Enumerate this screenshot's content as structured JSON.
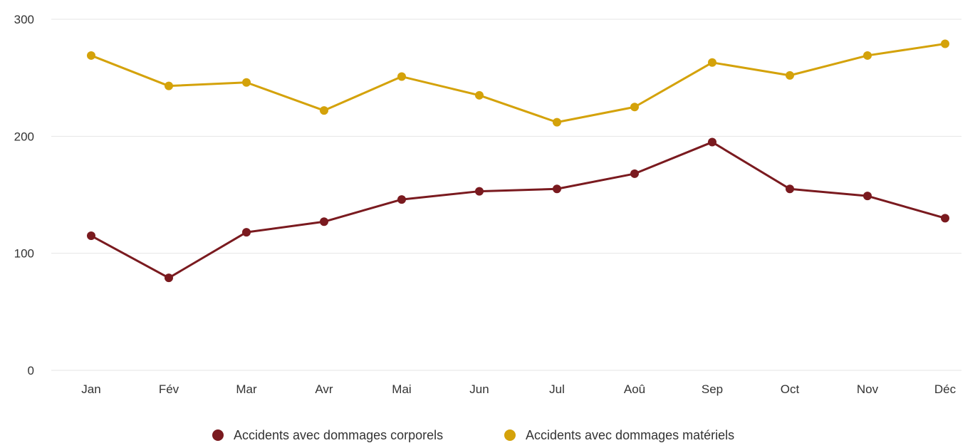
{
  "chart_data": {
    "type": "line",
    "title": "",
    "xlabel": "",
    "ylabel": "",
    "categories": [
      "Jan",
      "Fév",
      "Mar",
      "Avr",
      "Mai",
      "Jun",
      "Jul",
      "Aoû",
      "Sep",
      "Oct",
      "Nov",
      "Déc"
    ],
    "y_ticks": [
      "0",
      "100",
      "200",
      "300"
    ],
    "ylim": [
      0,
      300
    ],
    "grid": true,
    "legend_position": "bottom-center",
    "series": [
      {
        "name": "Accidents avec dommages corporels",
        "color": "#7a1a1f",
        "values": [
          115,
          79,
          118,
          127,
          146,
          153,
          155,
          168,
          195,
          155,
          149,
          130
        ]
      },
      {
        "name": "Accidents avec dommages matériels",
        "color": "#d4a20a",
        "values": [
          269,
          243,
          246,
          222,
          251,
          235,
          212,
          225,
          263,
          252,
          269,
          279
        ]
      }
    ]
  }
}
